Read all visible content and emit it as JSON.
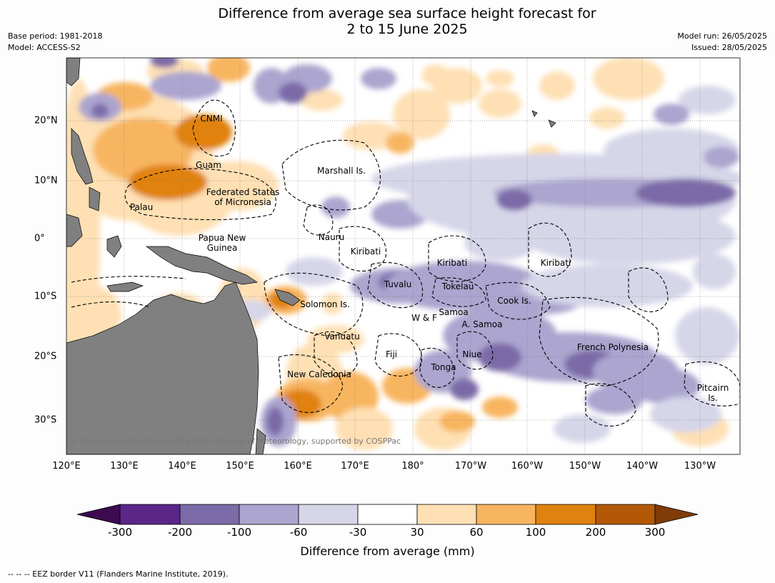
{
  "title_line1": "Difference from average sea surface height forecast for",
  "title_line2": "2 to 15 June 2025",
  "meta_left": [
    "Base period: 1981-2018",
    "Model: ACCESS-S2"
  ],
  "meta_right": [
    "Model run: 26/05/2025",
    "Issued: 28/05/2025"
  ],
  "lon_labels": [
    "120°E",
    "130°E",
    "140°E",
    "150°E",
    "160°E",
    "170°E",
    "180°",
    "170°W",
    "160°W",
    "150°W",
    "140°W",
    "130°W"
  ],
  "lat_labels": [
    "20°N",
    "10°N",
    "0°",
    "10°S",
    "20°S",
    "30°S"
  ],
  "region_labels": [
    {
      "text": "CNMI"
    },
    {
      "text": "Guam"
    },
    {
      "text": "Marshall Is."
    },
    {
      "text": "Federated States"
    },
    {
      "text": "of Micronesia"
    },
    {
      "text": "Palau"
    },
    {
      "text": "Papua New"
    },
    {
      "text": "Guinea"
    },
    {
      "text": "Nauru"
    },
    {
      "text": "Kiribati"
    },
    {
      "text": "Kiribati"
    },
    {
      "text": "Kiribati"
    },
    {
      "text": "Tuvalu"
    },
    {
      "text": "Tokelau"
    },
    {
      "text": "Cook Is."
    },
    {
      "text": "Solomon Is."
    },
    {
      "text": "Samoa"
    },
    {
      "text": "W & F"
    },
    {
      "text": "A. Samoa"
    },
    {
      "text": "Vanuatu"
    },
    {
      "text": "Fiji"
    },
    {
      "text": "Niue"
    },
    {
      "text": "French Polynesia"
    },
    {
      "text": "Tonga"
    },
    {
      "text": "New Caledonia"
    },
    {
      "text": "Pitcairn"
    },
    {
      "text": "Is."
    }
  ],
  "copyright": "© Commonwealth of Australia 2025, Bureau of Meteorology, supported by COSPPac",
  "colorbar": {
    "ticks": [
      "-300",
      "-200",
      "-100",
      "-60",
      "-30",
      "30",
      "60",
      "100",
      "200",
      "300"
    ],
    "colors": [
      "#3b0a4f",
      "#5a2688",
      "#7b6ba8",
      "#aba5cf",
      "#d6d6e9",
      "#ffffff",
      "#fee0b4",
      "#f8b560",
      "#e0820f",
      "#b35806",
      "#7f3b08"
    ],
    "label": "Difference from average (mm)"
  },
  "land_color": "#808080",
  "footnote": "--  --  -- EEZ border V11 (Flanders Marine Institute, 2019)."
}
